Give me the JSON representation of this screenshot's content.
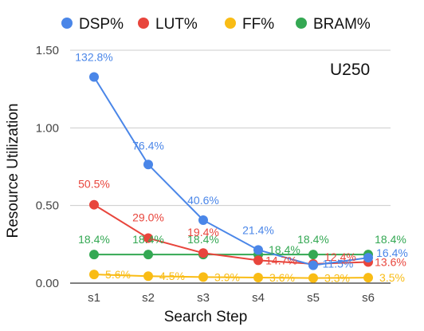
{
  "chart_data": {
    "type": "line",
    "title": "",
    "annotation": "U250",
    "xlabel": "Search Step",
    "ylabel": "Resource Utilization",
    "categories": [
      "s1",
      "s2",
      "s3",
      "s4",
      "s5",
      "s6"
    ],
    "ylim": [
      0,
      1.5
    ],
    "yticks": [
      "0.00",
      "0.50",
      "1.00",
      "1.50"
    ],
    "ytick_values": [
      0,
      0.5,
      1.0,
      1.5
    ],
    "grid": "horizontal",
    "legend_position": "top",
    "series": [
      {
        "name": "DSP%",
        "color": "#4a86e8",
        "values": [
          1.328,
          0.764,
          0.406,
          0.214,
          0.115,
          0.164
        ],
        "labels": [
          "132.8%",
          "76.4%",
          "40.6%",
          "21.4%",
          "11.5%",
          "16.4%"
        ]
      },
      {
        "name": "LUT%",
        "color": "#e8453c",
        "values": [
          0.505,
          0.29,
          0.194,
          0.147,
          0.124,
          0.136
        ],
        "labels": [
          "50.5%",
          "29.0%",
          "19.4%",
          "14.7%",
          "12.4%",
          "13.6%"
        ]
      },
      {
        "name": "FF%",
        "color": "#f9bc15",
        "values": [
          0.056,
          0.045,
          0.039,
          0.036,
          0.033,
          0.035
        ],
        "labels": [
          "5.6%",
          "4.5%",
          "3.9%",
          "3.6%",
          "3.3%",
          "3.5%"
        ]
      },
      {
        "name": "BRAM%",
        "color": "#34a853",
        "values": [
          0.184,
          0.184,
          0.184,
          0.184,
          0.184,
          0.184
        ],
        "labels": [
          "18.4%",
          "18.4%",
          "18.4%",
          "18.4%",
          "18.4%",
          "18.4%"
        ]
      }
    ]
  }
}
